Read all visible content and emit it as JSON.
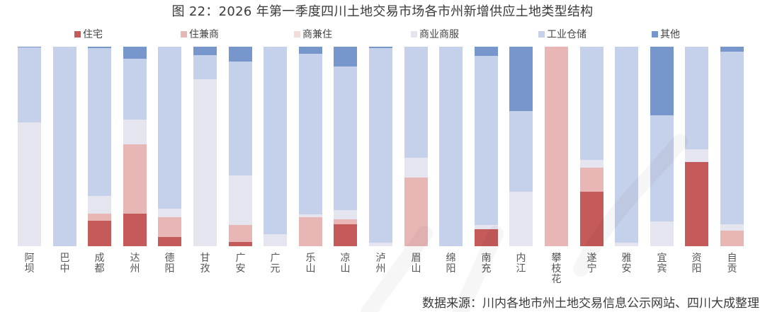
{
  "title": "图 22：2026 年第一季度四川土地交易市场各市州新增供应土地类型结构",
  "legend": [
    {
      "key": "zhuzhai",
      "label": "住宅",
      "color": "#c55a5a"
    },
    {
      "key": "zhujianshang",
      "label": "住兼商",
      "color": "#e9b6b6"
    },
    {
      "key": "shangjianzhu",
      "label": "商兼住",
      "color": "#f3dcdc"
    },
    {
      "key": "shangye",
      "label": "商业商服",
      "color": "#e4e5ef"
    },
    {
      "key": "gongye",
      "label": "工业仓储",
      "color": "#c5d1ea"
    },
    {
      "key": "qita",
      "label": "其他",
      "color": "#7696cc"
    }
  ],
  "source": "数据来源：川内各地市州土地交易信息公示网站、四川大成整理",
  "chart_data": {
    "type": "bar",
    "stacked": true,
    "percent": true,
    "title": "图 22：2026 年第一季度四川土地交易市场各市州新增供应土地类型结构",
    "xlabel": "",
    "ylabel": "",
    "ylim": [
      0,
      100
    ],
    "grid": false,
    "legend_position": "top",
    "categories": [
      "阿坝",
      "巴中",
      "成都",
      "达州",
      "德阳",
      "甘孜",
      "广安",
      "广元",
      "乐山",
      "凉山",
      "泸州",
      "眉山",
      "绵阳",
      "南充",
      "内江",
      "攀枝花",
      "遂宁",
      "雅安",
      "宜宾",
      "资阳",
      "自贡"
    ],
    "series": [
      {
        "name": "住宅",
        "color": "#c55a5a",
        "values": [
          0,
          0,
          12.9,
          16.2,
          4.6,
          0,
          2.2,
          0,
          0,
          11.1,
          0,
          0,
          0,
          8.4,
          0,
          0,
          27.2,
          0,
          0,
          42.3,
          0
        ]
      },
      {
        "name": "住兼商",
        "color": "#e9b6b6",
        "values": [
          0,
          0,
          3.5,
          34.9,
          10.0,
          0,
          8.5,
          0,
          14.6,
          2.4,
          0,
          34.4,
          0,
          0,
          0,
          100,
          12.3,
          0,
          0,
          0,
          7.9
        ]
      },
      {
        "name": "商兼住",
        "color": "#f3dcdc",
        "values": [
          0,
          0,
          0,
          0,
          0,
          0,
          0,
          0,
          0,
          0,
          0,
          0,
          0,
          0,
          0,
          0,
          0,
          0,
          0,
          0,
          0
        ]
      },
      {
        "name": "商业商服",
        "color": "#e4e5ef",
        "values": [
          61.9,
          0,
          8.7,
          12.4,
          4.1,
          83.8,
          24.6,
          6.1,
          1.4,
          4.5,
          1.9,
          10.0,
          0,
          2.1,
          27.4,
          0,
          3.8,
          1.9,
          12.5,
          6.4,
          3.2
        ]
      },
      {
        "name": "工业仓储",
        "color": "#c5d1ea",
        "values": [
          37.7,
          100,
          74.2,
          30.6,
          81.3,
          11.8,
          57.4,
          93.9,
          80.5,
          72.0,
          97.4,
          55.6,
          100,
          85.0,
          40.4,
          0,
          56.7,
          98.1,
          53.2,
          51.3,
          86.5
        ]
      },
      {
        "name": "其他",
        "color": "#7696cc",
        "values": [
          0.4,
          0,
          0.7,
          5.9,
          0,
          4.4,
          7.3,
          0,
          3.5,
          10.0,
          0.7,
          0,
          0,
          4.5,
          32.2,
          0,
          0,
          0,
          34.3,
          0,
          2.4
        ]
      }
    ]
  }
}
